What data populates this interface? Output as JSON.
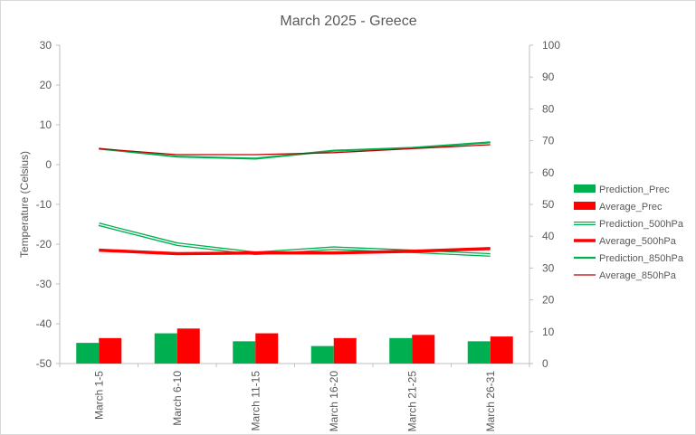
{
  "chart_data": {
    "type": "bar",
    "title": "March 2025 - Greece",
    "ylabel": "Temperature (Celsius)",
    "y2label": "",
    "xlabel": "",
    "categories": [
      "March 1-5",
      "March 6-10",
      "March 11-15",
      "March 16-20",
      "March 21-25",
      "March 26-31"
    ],
    "ylim": [
      -50,
      30
    ],
    "y_ticks": [
      30,
      20,
      10,
      0,
      -10,
      -20,
      -30,
      -40,
      -50
    ],
    "y2lim": [
      0,
      100
    ],
    "y2_ticks": [
      100,
      90,
      80,
      70,
      60,
      50,
      40,
      30,
      20,
      10,
      0
    ],
    "grid": false,
    "legend_position": "right",
    "series": [
      {
        "name": "Prediction_Prec",
        "kind": "bar",
        "axis": "secondary",
        "color": "#00b050",
        "values": [
          6.5,
          9.5,
          7.0,
          5.5,
          8.0,
          7.0
        ]
      },
      {
        "name": "Average_Prec",
        "kind": "bar",
        "axis": "secondary",
        "color": "#ff0000",
        "values": [
          8.0,
          11.0,
          9.5,
          8.0,
          9.0,
          8.5
        ]
      },
      {
        "name": "Prediction_500hPa",
        "kind": "line",
        "style": "double",
        "axis": "primary",
        "color": "#00b050",
        "values": [
          -15.0,
          -20.0,
          -22.3,
          -21.0,
          -21.8,
          -22.7
        ]
      },
      {
        "name": "Average_500hPa",
        "kind": "line",
        "style": "thick",
        "axis": "primary",
        "color": "#ff0000",
        "values": [
          -21.5,
          -22.4,
          -22.2,
          -22.2,
          -21.8,
          -21.1
        ]
      },
      {
        "name": "Prediction_850hPa",
        "kind": "line",
        "style": "medium",
        "axis": "primary",
        "color": "#00b050",
        "values": [
          4.0,
          2.0,
          1.5,
          3.5,
          4.2,
          5.6
        ]
      },
      {
        "name": "Average_850hPa",
        "kind": "line",
        "style": "thin",
        "axis": "primary",
        "color": "#c00000",
        "values": [
          4.0,
          2.5,
          2.5,
          3.0,
          4.0,
          5.0
        ]
      }
    ]
  }
}
